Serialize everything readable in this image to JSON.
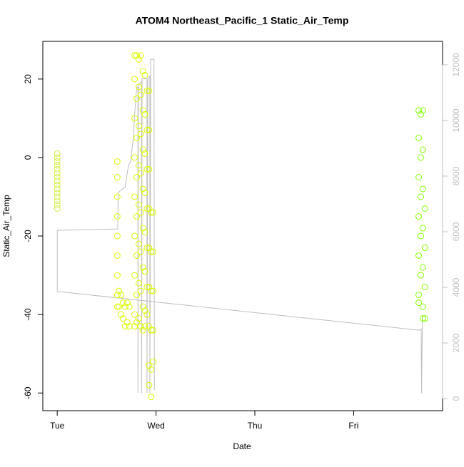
{
  "chart_data": {
    "type": "scatter",
    "title": "ATOM4 Northeast_Pacific_1 Static_Air_Temp",
    "x_label": "Date",
    "y_label": "Static_Air_Temp",
    "xlim": [
      -3.5,
      93.6
    ],
    "xticks": [
      {
        "value": 0,
        "label": "Tue"
      },
      {
        "value": 24,
        "label": "Wed"
      },
      {
        "value": 48,
        "label": "Thu"
      },
      {
        "value": 72,
        "label": "Fri"
      }
    ],
    "ylim": [
      -64.5,
      29.6
    ],
    "yticks": [
      -60,
      -40,
      -20,
      0,
      20
    ],
    "y2lim": [
      -436,
      12846
    ],
    "y2ticks": [
      0,
      2000,
      4000,
      6000,
      8000,
      10000,
      12000
    ],
    "y2_color": "#bebebe",
    "series": [
      {
        "color": "#d2ee3c",
        "x": [
          0,
          0,
          0,
          0,
          0,
          0,
          0,
          0,
          0,
          0,
          0,
          0,
          0,
          0,
          0
        ],
        "values": [
          1,
          0,
          -1,
          -2,
          -3,
          -4,
          -5,
          -6,
          -7,
          -8,
          -9,
          -10,
          -11,
          -12,
          -13
        ]
      },
      {
        "color": "#dcff00",
        "x": [
          14.6,
          14.6,
          14.6,
          14.6,
          14.6,
          14.6,
          14.6,
          14.6,
          14.6,
          15,
          15,
          15.5,
          15.5,
          16,
          16,
          16.5,
          16.5,
          17,
          17,
          17.5,
          17.5,
          18.8,
          18.8,
          18.8,
          18.8,
          18.8,
          18.8,
          18.8,
          18.8,
          18.8,
          19.3,
          19.3,
          19.3,
          19.3,
          19.3,
          19.3,
          19.3,
          19.3,
          19.8,
          19.8,
          19.8,
          19.8,
          19.8,
          19.8,
          19.8,
          19.8,
          20.3,
          20.3,
          20.3,
          20.3,
          20.3,
          20.3,
          20.3,
          20.3,
          20.8,
          20.8,
          20.8,
          20.8,
          20.8,
          20.8,
          20.8,
          20.8,
          21.3,
          21.3,
          21.3,
          21.3,
          21.3,
          21.3,
          21.3,
          21.3,
          21.8,
          21.8,
          21.8,
          21.8,
          21.8,
          21.8,
          21.8,
          22.3,
          22.3,
          22.3,
          22.3,
          22.3,
          22.3,
          22.3,
          22.3,
          22.3,
          22.8,
          22.8,
          22.8,
          22.8,
          22.8,
          22.8,
          23.3,
          23.3,
          23.3,
          23.3,
          23.3
        ],
        "values": [
          -1,
          -5,
          -10,
          -15,
          -20,
          -25,
          -30,
          -35,
          -38,
          -34,
          -38,
          -35,
          -40,
          -37,
          -41,
          -38,
          -43,
          -37,
          -42,
          -38,
          -43,
          26,
          20,
          10,
          0,
          -10,
          -20,
          -30,
          -40,
          -43,
          26,
          15,
          5,
          -5,
          -15,
          -25,
          -35,
          -42,
          25,
          18,
          8,
          -2,
          -12,
          -22,
          -32,
          -41,
          26,
          16,
          6,
          -4,
          -14,
          -24,
          -34,
          -43,
          22,
          12,
          2,
          -8,
          -18,
          -28,
          -38,
          -44,
          21,
          11,
          1,
          -9,
          -19,
          -29,
          -39,
          -43,
          17,
          7,
          -3,
          -13,
          -23,
          -33,
          -40,
          17,
          7,
          -3,
          -13,
          -23,
          -33,
          -43,
          -53,
          -58,
          -14,
          -24,
          -34,
          -44,
          -54,
          -61,
          -14,
          -24,
          -34,
          -44,
          -52
        ]
      },
      {
        "color": "#84ff00",
        "x": [
          87.8,
          87.8,
          87.8,
          87.8,
          87.8,
          87.8,
          87.8,
          88.3,
          88.3,
          88.3,
          88.3,
          88.3,
          88.8,
          88.8,
          88.8,
          88.8,
          88.8,
          88.8,
          88.8,
          89.3,
          89.3,
          89.3,
          89.3
        ],
        "values": [
          12,
          5,
          -5,
          -15,
          -25,
          -35,
          -37,
          11,
          0,
          -10,
          -20,
          -30,
          12,
          2,
          -8,
          -18,
          -28,
          -38,
          -41,
          -13,
          -23,
          -33,
          -41
        ]
      },
      {
        "color": "#bebebe",
        "axis": "y2",
        "line": true,
        "x": [
          0,
          14.7,
          14.8,
          15.5,
          16.5,
          17.3,
          17.8,
          18.5,
          18.7,
          19.2,
          19.4,
          19.6,
          19.6,
          19.7,
          20.5,
          20.5,
          20.6,
          21.8,
          21.8,
          22.0,
          22.5,
          22.5,
          22.7,
          23.5,
          23.6,
          null,
          0,
          0,
          87.9,
          88.4,
          88.5,
          88.7
        ],
        "values": [
          6050,
          6100,
          7400,
          7500,
          7600,
          8400,
          8500,
          9400,
          10000,
          11000,
          11200,
          11200,
          200,
          11300,
          11400,
          200,
          11500,
          11500,
          200,
          11500,
          11600,
          200,
          12200,
          12200,
          300,
          null,
          6050,
          3850,
          2460,
          2500,
          200,
          3000
        ]
      }
    ]
  }
}
